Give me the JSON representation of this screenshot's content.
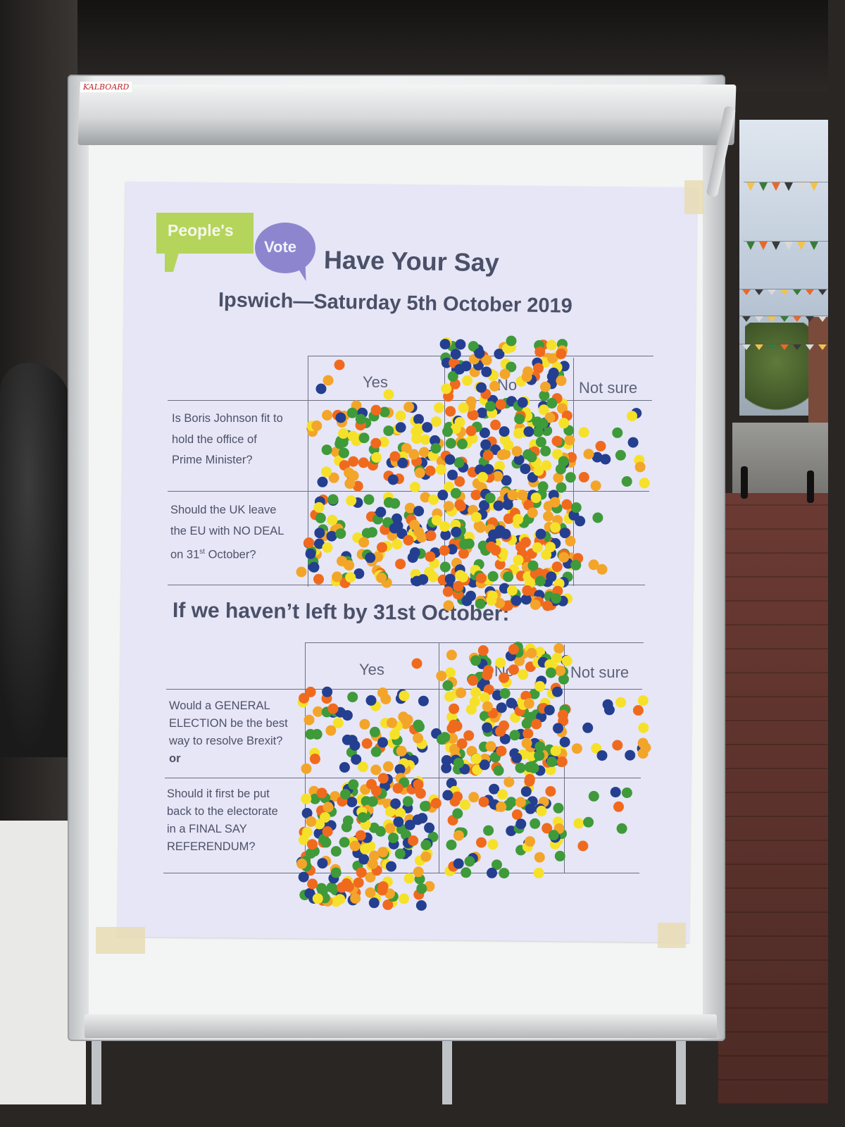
{
  "board": {
    "brand": "KALBOARD"
  },
  "poster": {
    "logo_primary": "People's",
    "logo_secondary": "Vote",
    "title": "Have Your Say",
    "subtitle": "Ipswich—Saturday 5th October 2019",
    "section_heading": "If we haven’t left by 31st October:"
  },
  "grid_top": {
    "columns": [
      "Yes",
      "No",
      "Not sure"
    ],
    "questions": [
      {
        "lines": [
          "Is Boris Johnson fit to",
          "hold the office of",
          "Prime Minister?"
        ]
      },
      {
        "lines": [
          "Should the UK leave",
          "the EU with NO DEAL"
        ],
        "date_prefix": "on 31",
        "date_sup": "st",
        "date_suffix": " October?"
      }
    ]
  },
  "grid_bottom": {
    "columns": [
      "Yes",
      "No",
      "Not sure"
    ],
    "questions": [
      {
        "lines": [
          "Would a GENERAL",
          "ELECTION be the best",
          "way to resolve Brexit?"
        ],
        "connector": "or"
      },
      {
        "lines": [
          "Should it first be put",
          "back to the electorate",
          "in a FINAL SAY",
          "REFERENDUM?"
        ]
      }
    ]
  },
  "sticker_colors": [
    "#243f8f",
    "#f06a1e",
    "#f6e12a",
    "#f3a52a",
    "#3f9a3a"
  ]
}
